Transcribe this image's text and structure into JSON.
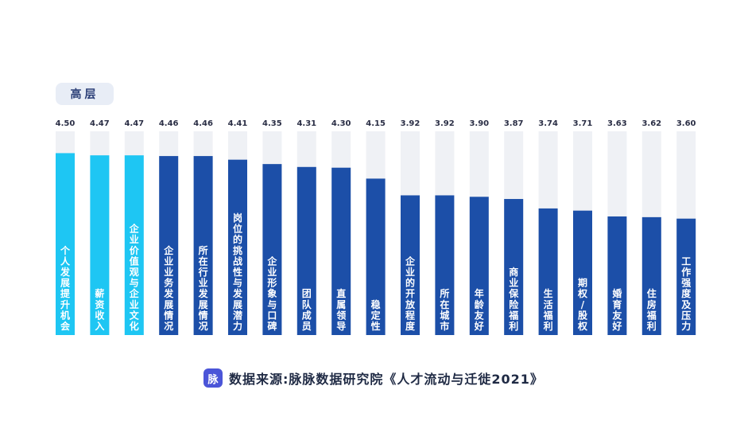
{
  "tag_label": "高层",
  "source": {
    "logo_text": "脉",
    "text": "数据来源:脉脉数据研究院《人才流动与迁徙2021》"
  },
  "colors": {
    "highlight": "#1ec6f3",
    "bar": "#1c4fa8",
    "track": "#eff1f5",
    "value_text": "#2a2e45",
    "bar_label": "#ffffff"
  },
  "chart_data": {
    "type": "bar",
    "title": "",
    "xlabel": "",
    "ylabel": "",
    "ylim": [
      2.0,
      4.8
    ],
    "grid": false,
    "highlight_count": 3,
    "categories": [
      "个人发展提升机会",
      "薪资收入",
      "企业价值观与企业文化",
      "企业业务发展情况",
      "所在行业发展情况",
      "岗位的挑战性与发展潜力",
      "企业形象与口碑",
      "团队成员",
      "直属领导",
      "稳定性",
      "企业的开放程度",
      "所在城市",
      "年龄友好",
      "商业保险福利",
      "生活福利",
      "期权/股权",
      "婚育友好",
      "住房福利",
      "工作强度及压力"
    ],
    "values": [
      4.5,
      4.47,
      4.47,
      4.46,
      4.46,
      4.41,
      4.35,
      4.31,
      4.3,
      4.15,
      3.92,
      3.92,
      3.9,
      3.87,
      3.74,
      3.71,
      3.63,
      3.62,
      3.6
    ],
    "value_labels": [
      "4.50",
      "4.47",
      "4.47",
      "4.46",
      "4.46",
      "4.41",
      "4.35",
      "4.31",
      "4.30",
      "4.15",
      "3.92",
      "3.92",
      "3.90",
      "3.87",
      "3.74",
      "3.71",
      "3.63",
      "3.62",
      "3.60"
    ]
  }
}
